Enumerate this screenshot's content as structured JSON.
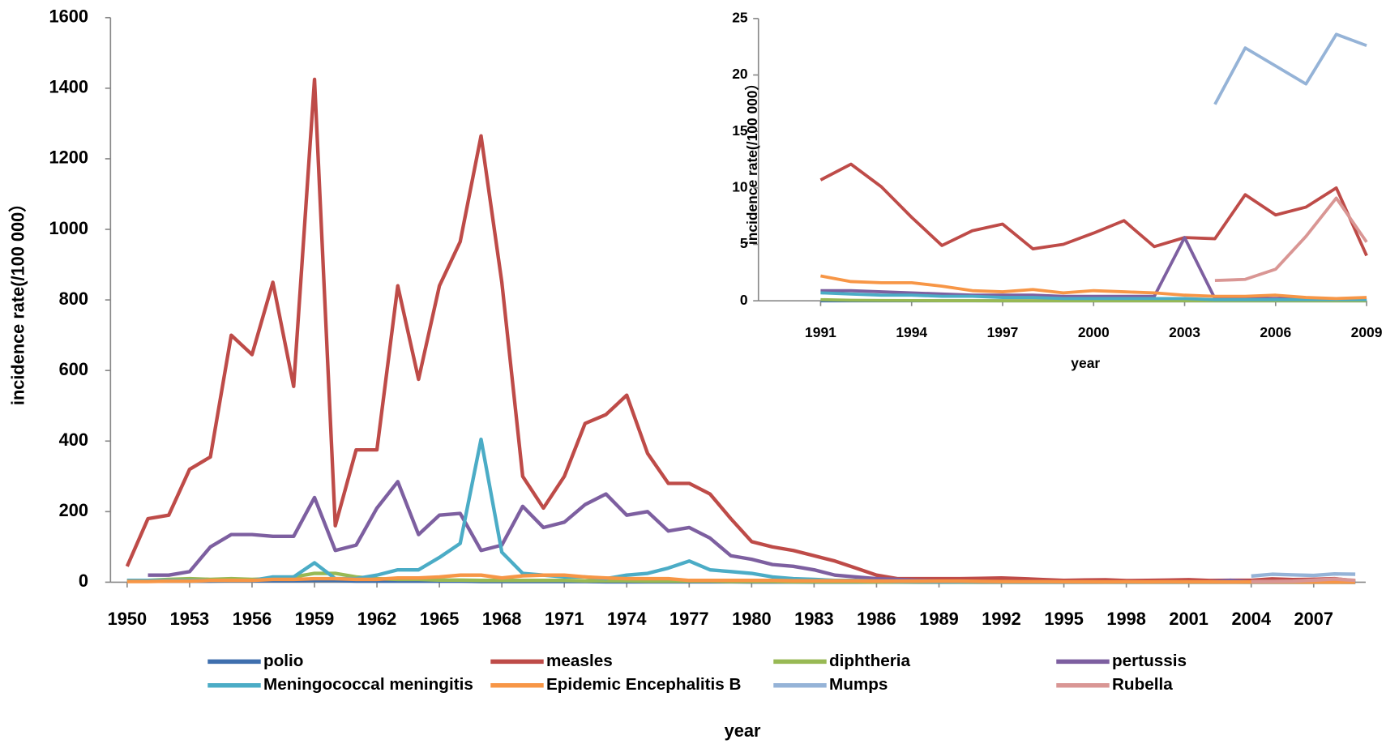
{
  "chart_data": [
    {
      "type": "line",
      "xlabel": "year",
      "ylabel": "incidence rate(/100 000）",
      "legend": "bottom",
      "x": [
        1950,
        1951,
        1952,
        1953,
        1954,
        1955,
        1956,
        1957,
        1958,
        1959,
        1960,
        1961,
        1962,
        1963,
        1964,
        1965,
        1966,
        1967,
        1968,
        1969,
        1970,
        1971,
        1972,
        1973,
        1974,
        1975,
        1976,
        1977,
        1978,
        1979,
        1980,
        1981,
        1982,
        1983,
        1984,
        1985,
        1986,
        1987,
        1988,
        1989,
        1990,
        1991,
        1992,
        1993,
        1994,
        1995,
        1996,
        1997,
        1998,
        1999,
        2000,
        2001,
        2002,
        2003,
        2004,
        2005,
        2006,
        2007,
        2008,
        2009
      ],
      "xlim": [
        1949.2,
        2009.5
      ],
      "xticks": [
        1950,
        1953,
        1956,
        1959,
        1962,
        1965,
        1968,
        1971,
        1974,
        1977,
        1980,
        1983,
        1986,
        1989,
        1992,
        1995,
        1998,
        2001,
        2004,
        2007
      ],
      "ylim": [
        0,
        1600
      ],
      "yticks": [
        0,
        200,
        400,
        600,
        800,
        1000,
        1200,
        1400,
        1600
      ],
      "series": [
        {
          "name": "polio",
          "color": "#3f6fae",
          "values": [
            3,
            3,
            3,
            3,
            3,
            4,
            4,
            4,
            4,
            5,
            5,
            3,
            3,
            3,
            3,
            3,
            3,
            2,
            2,
            2,
            2,
            2,
            2,
            1,
            1,
            1,
            1,
            1,
            1,
            1,
            0.5,
            0.5,
            0.5,
            0.3,
            0.3,
            0.2,
            0.2,
            0.2,
            0.1,
            0.1,
            0.1,
            0,
            0,
            0,
            0,
            0,
            0,
            0,
            0,
            0,
            0,
            0,
            0,
            0,
            0,
            0,
            0,
            0,
            0,
            0
          ]
        },
        {
          "name": "measles",
          "color": "#be4b48",
          "values": [
            45,
            180,
            190,
            320,
            355,
            700,
            645,
            850,
            555,
            1425,
            160,
            375,
            375,
            840,
            575,
            840,
            965,
            1265,
            850,
            300,
            210,
            300,
            450,
            475,
            530,
            365,
            280,
            280,
            250,
            180,
            115,
            100,
            90,
            75,
            60,
            40,
            20,
            10,
            10,
            10,
            10,
            10.7,
            12.1,
            10.1,
            7.4,
            4.9,
            6.2,
            6.8,
            4.6,
            5,
            6,
            7.1,
            4.8,
            5.6,
            5.5,
            9.4,
            7.6,
            8.3,
            10,
            4
          ]
        },
        {
          "name": "diphtheria",
          "color": "#98b954",
          "values": [
            5,
            5,
            8,
            10,
            8,
            10,
            8,
            10,
            15,
            25,
            25,
            15,
            10,
            8,
            8,
            6,
            6,
            5,
            5,
            5,
            5,
            5,
            4,
            4,
            4,
            3,
            3,
            3,
            3,
            2,
            2,
            2,
            1,
            1,
            1,
            1,
            0.5,
            0.5,
            0.5,
            0.5,
            0.3,
            0.1,
            0.05,
            0.03,
            0.02,
            0.01,
            0.01,
            0,
            0,
            0,
            0,
            0,
            0,
            0,
            0,
            0,
            0,
            0,
            0,
            0
          ]
        },
        {
          "name": "pertussis",
          "color": "#7d5fa0",
          "values": [
            null,
            20,
            20,
            30,
            100,
            135,
            135,
            130,
            130,
            240,
            90,
            105,
            210,
            285,
            135,
            190,
            195,
            90,
            105,
            215,
            155,
            170,
            220,
            250,
            190,
            200,
            145,
            155,
            125,
            75,
            65,
            50,
            45,
            35,
            20,
            15,
            10,
            8,
            5,
            3,
            2,
            0.9,
            0.9,
            0.8,
            0.7,
            0.6,
            0.5,
            0.5,
            0.5,
            0.4,
            0.4,
            0.4,
            0.4,
            5.6,
            0.2,
            0.2,
            0.2,
            0.2,
            0.2,
            0.1
          ]
        },
        {
          "name": "Meningococcal meningitis",
          "color": "#4bacc6",
          "values": [
            5,
            5,
            5,
            5,
            5,
            5,
            5,
            15,
            15,
            55,
            10,
            10,
            20,
            35,
            35,
            70,
            110,
            405,
            85,
            25,
            20,
            15,
            15,
            10,
            20,
            25,
            40,
            60,
            35,
            30,
            25,
            15,
            10,
            8,
            5,
            5,
            3,
            2,
            2,
            1,
            1,
            0.7,
            0.6,
            0.5,
            0.5,
            0.4,
            0.4,
            0.3,
            0.3,
            0.2,
            0.2,
            0.2,
            0.2,
            0.2,
            0.1,
            0.1,
            0.1,
            0.1,
            0.1,
            0.1
          ]
        },
        {
          "name": "Epidemic Encephalitis B",
          "color": "#f79646",
          "values": [
            2,
            2,
            3,
            3,
            5,
            5,
            5,
            8,
            8,
            10,
            10,
            8,
            8,
            12,
            12,
            15,
            20,
            20,
            12,
            18,
            20,
            20,
            15,
            12,
            10,
            10,
            10,
            5,
            5,
            5,
            5,
            5,
            4,
            4,
            4,
            4,
            3,
            3,
            3,
            3,
            3,
            2.2,
            1.7,
            1.6,
            1.6,
            1.3,
            0.9,
            0.8,
            1.0,
            0.7,
            0.9,
            0.8,
            0.7,
            0.5,
            0.4,
            0.4,
            0.5,
            0.3,
            0.2,
            0.3
          ]
        },
        {
          "name": "Mumps",
          "color": "#95b3d7",
          "values": [
            null,
            null,
            null,
            null,
            null,
            null,
            null,
            null,
            null,
            null,
            null,
            null,
            null,
            null,
            null,
            null,
            null,
            null,
            null,
            null,
            null,
            null,
            null,
            null,
            null,
            null,
            null,
            null,
            null,
            null,
            null,
            null,
            null,
            null,
            null,
            null,
            null,
            null,
            null,
            null,
            null,
            null,
            null,
            null,
            null,
            null,
            null,
            null,
            null,
            null,
            null,
            null,
            null,
            null,
            17.4,
            22.4,
            20.8,
            19.2,
            23.6,
            22.6
          ]
        },
        {
          "name": "Rubella",
          "color": "#d99694",
          "values": [
            null,
            null,
            null,
            null,
            null,
            null,
            null,
            null,
            null,
            null,
            null,
            null,
            null,
            null,
            null,
            null,
            null,
            null,
            null,
            null,
            null,
            null,
            null,
            null,
            null,
            null,
            null,
            null,
            null,
            null,
            null,
            null,
            null,
            null,
            null,
            null,
            null,
            null,
            null,
            null,
            null,
            null,
            null,
            null,
            null,
            null,
            null,
            null,
            null,
            null,
            null,
            null,
            null,
            null,
            1.8,
            1.9,
            2.8,
            5.7,
            9.1,
            5.2
          ]
        }
      ]
    },
    {
      "type": "line",
      "xlabel": "year",
      "ylabel": "incidence rate(/100 000）",
      "x": [
        1991,
        1992,
        1993,
        1994,
        1995,
        1996,
        1997,
        1998,
        1999,
        2000,
        2001,
        2002,
        2003,
        2004,
        2005,
        2006,
        2007,
        2008,
        2009
      ],
      "xlim": [
        1988.95,
        2009
      ],
      "xticks": [
        1991,
        1994,
        1997,
        2000,
        2003,
        2006,
        2009
      ],
      "ylim": [
        0,
        25
      ],
      "yticks": [
        0,
        5,
        10,
        15,
        20,
        25
      ],
      "series": [
        {
          "color": "#3f6fae",
          "values": [
            0,
            0,
            0,
            0,
            0,
            0,
            0,
            0,
            0,
            0,
            0,
            0,
            0,
            0,
            0,
            0,
            0,
            0,
            0
          ]
        },
        {
          "color": "#be4b48",
          "values": [
            10.7,
            12.1,
            10.1,
            7.4,
            4.9,
            6.2,
            6.8,
            4.6,
            5,
            6,
            7.1,
            4.8,
            5.6,
            5.5,
            9.4,
            7.6,
            8.3,
            10,
            4
          ]
        },
        {
          "color": "#98b954",
          "values": [
            0.1,
            0.05,
            0.03,
            0.02,
            0.01,
            0.01,
            0,
            0,
            0,
            0,
            0,
            0,
            0,
            0,
            0,
            0,
            0,
            0,
            0
          ]
        },
        {
          "color": "#7d5fa0",
          "values": [
            0.9,
            0.9,
            0.8,
            0.7,
            0.6,
            0.5,
            0.5,
            0.5,
            0.4,
            0.4,
            0.4,
            0.4,
            5.6,
            0.2,
            0.2,
            0.2,
            0.2,
            0.2,
            0.1
          ]
        },
        {
          "color": "#4bacc6",
          "values": [
            0.7,
            0.6,
            0.5,
            0.5,
            0.4,
            0.4,
            0.3,
            0.3,
            0.2,
            0.2,
            0.2,
            0.2,
            0.2,
            0.1,
            0.1,
            0.1,
            0.1,
            0.1,
            0.1
          ]
        },
        {
          "color": "#f79646",
          "values": [
            2.2,
            1.7,
            1.6,
            1.6,
            1.3,
            0.9,
            0.8,
            1.0,
            0.7,
            0.9,
            0.8,
            0.7,
            0.5,
            0.4,
            0.4,
            0.5,
            0.3,
            0.2,
            0.3
          ]
        },
        {
          "color": "#95b3d7",
          "values": [
            null,
            null,
            null,
            null,
            null,
            null,
            null,
            null,
            null,
            null,
            null,
            null,
            null,
            17.4,
            22.4,
            20.8,
            19.2,
            23.6,
            22.6
          ]
        },
        {
          "color": "#d99694",
          "values": [
            null,
            null,
            null,
            null,
            null,
            null,
            null,
            null,
            null,
            null,
            null,
            null,
            null,
            1.8,
            1.9,
            2.8,
            5.7,
            9.1,
            5.2
          ]
        }
      ]
    }
  ]
}
